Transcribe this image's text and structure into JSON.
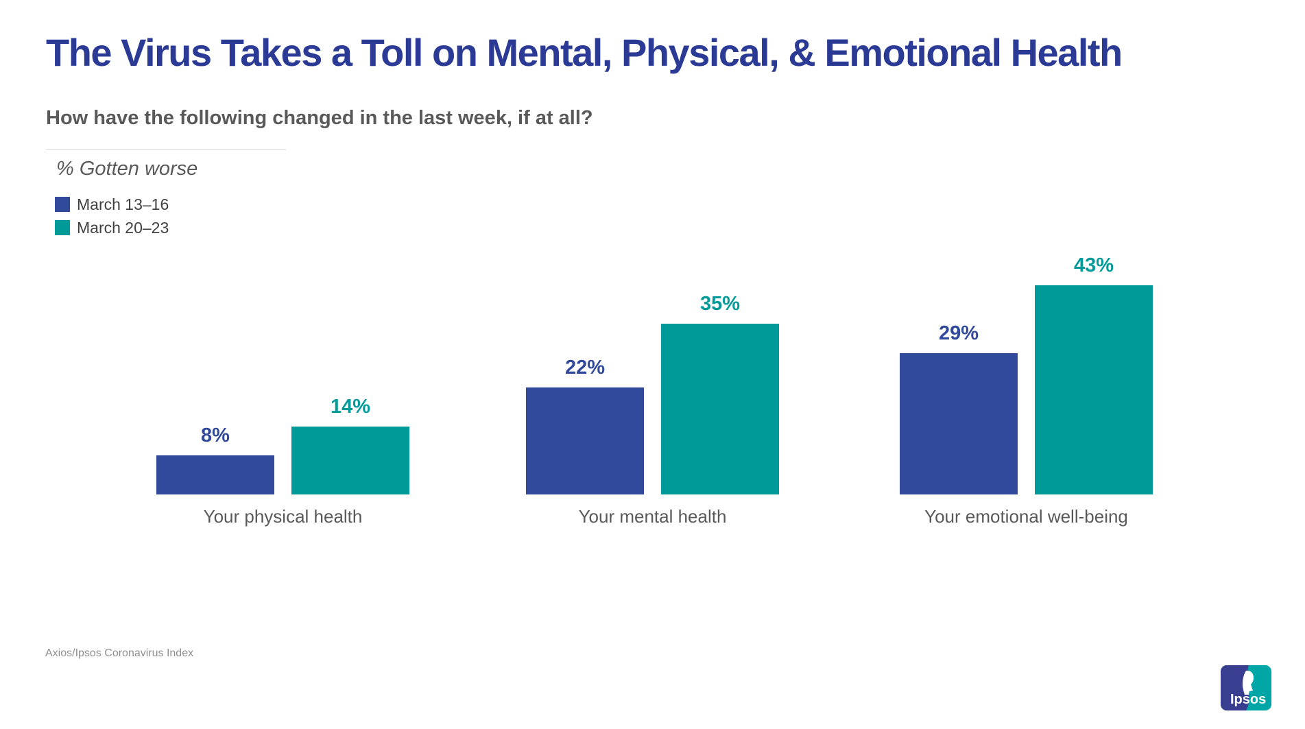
{
  "header": {
    "title": "The Virus Takes a Toll on Mental, Physical, & Emotional Health",
    "subtitle": "How have the following changed in the last week, if at all?"
  },
  "legend": {
    "unit_label": "% Gotten worse",
    "items": [
      {
        "label": "March 13–16",
        "color": "#30499B"
      },
      {
        "label": "March 20–23",
        "color": "#009B98"
      }
    ]
  },
  "chart_data": {
    "type": "bar",
    "title": "% Gotten worse",
    "categories": [
      "Your physical health",
      "Your mental health",
      "Your emotional well-being"
    ],
    "series": [
      {
        "name": "March 13–16",
        "color": "#30499B",
        "values": [
          8,
          22,
          29
        ]
      },
      {
        "name": "March 20–23",
        "color": "#009B98",
        "values": [
          14,
          35,
          43
        ]
      }
    ],
    "value_suffix": "%",
    "ylim": [
      0,
      50
    ],
    "grid": false,
    "axes_shown": false,
    "data_labels": true,
    "legend_position": "top-left"
  },
  "footer": {
    "source": "Axios/Ipsos Coronavirus Index"
  },
  "logo": {
    "text": "Ipsos",
    "blue": "#3A3E90",
    "teal": "#00A5A5"
  }
}
